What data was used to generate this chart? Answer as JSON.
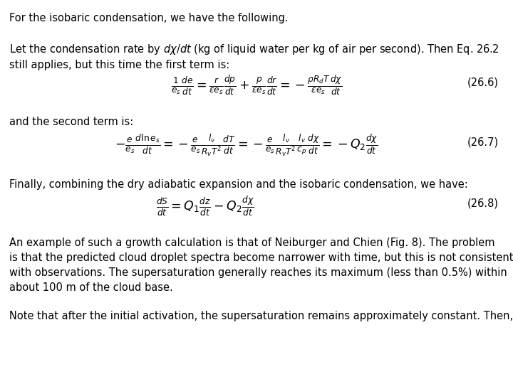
{
  "background_color": "#ffffff",
  "text_color": "#000000",
  "fig_width": 7.2,
  "fig_height": 5.4,
  "dpi": 100,
  "para1": "For the isobaric condensation, we have the following.",
  "para2a": "Let the condensation rate by $d\\chi/dt$ (kg of liquid water per kg of air per second). Then Eq. 26.2",
  "para2b": "still applies, but this time the first term is:",
  "eq1": "$\\frac{1}{e_s}\\frac{de}{dt} = \\frac{r}{\\varepsilon e_s}\\frac{dp}{dt} + \\frac{p}{\\varepsilon e_s}\\frac{dr}{dt} = -\\frac{\\rho R_d T}{\\varepsilon e_s}\\frac{d\\chi}{dt}$",
  "eq1_label": "(26.6)",
  "para3": "and the second term is:",
  "eq2": "$-\\frac{e}{e_s}\\frac{d\\ln e_s}{dt} = -\\frac{e}{e_s}\\frac{l_v}{R_v T^2}\\frac{dT}{dt} = -\\frac{e}{e_s}\\frac{l_v}{R_v T^2}\\frac{l_v}{c_p}\\frac{d\\chi}{dt} = -Q_2\\frac{d\\chi}{dt}$",
  "eq2_label": "(26.7)",
  "para4": "Finally, combining the dry adiabatic expansion and the isobaric condensation, we have:",
  "eq3": "$\\frac{dS}{dt} = Q_1\\frac{dz}{dt} - Q_2\\frac{d\\chi}{dt}$",
  "eq3_label": "(26.8)",
  "para5a": "An example of such a growth calculation is that of Neiburger and Chien (Fig. 8). The problem",
  "para5b": "is that the predicted cloud droplet spectra become narrower with time, but this is not consistent",
  "para5c": "with observations. The supersaturation generally reaches its maximum (less than 0.5%) within",
  "para5d": "about 100 m of the cloud base.",
  "para6": "Note that after the initial activation, the supersaturation remains approximately constant. Then,"
}
